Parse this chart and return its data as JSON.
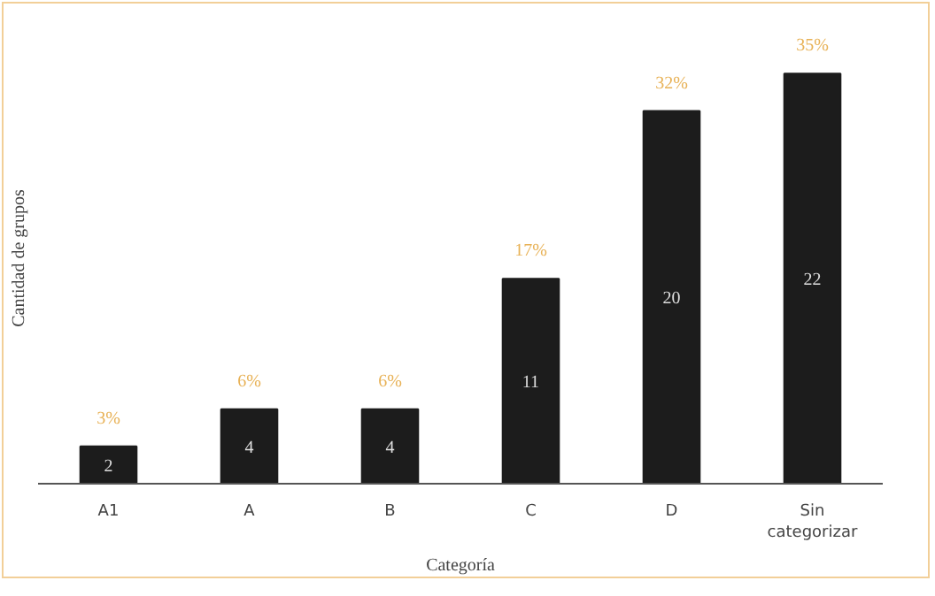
{
  "chart_data": {
    "type": "bar",
    "xlabel": "Categoría",
    "ylabel": "Cantidad de grupos",
    "categories": [
      "A1",
      "A",
      "B",
      "C",
      "D",
      "Sin categorizar"
    ],
    "values": [
      2,
      4,
      4,
      11,
      20,
      22
    ],
    "color": "#1c1c1c",
    "data_labels": true,
    "tick_labels": "x",
    "grid": false,
    "annotations": [
      {
        "text": "3%",
        "x": "A1",
        "y": 2
      },
      {
        "text": "6%",
        "x": "A",
        "y": 4
      },
      {
        "text": "6%",
        "x": "B",
        "y": 4
      },
      {
        "text": "17%",
        "x": "C",
        "y": 11
      },
      {
        "text": "32%",
        "x": "D",
        "y": 20
      },
      {
        "text": "35%",
        "x": "Sin categorizar",
        "y": 22
      }
    ]
  }
}
